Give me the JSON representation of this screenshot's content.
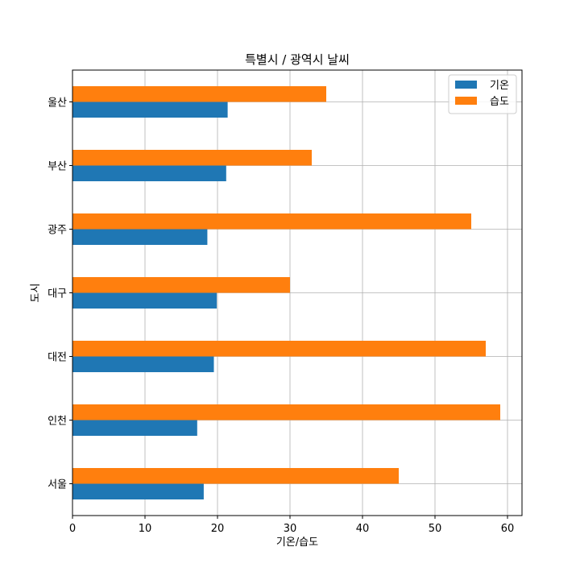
{
  "chart_data": {
    "type": "bar",
    "orientation": "horizontal",
    "title": "특별시 / 광역시 날씨",
    "xlabel": "기온/습도",
    "ylabel": "도시",
    "categories": [
      "서울",
      "인천",
      "대전",
      "대구",
      "광주",
      "부산",
      "울산"
    ],
    "series": [
      {
        "name": "기온",
        "color": "#1f77b4",
        "values": [
          18.1,
          17.2,
          19.5,
          19.9,
          18.6,
          21.2,
          21.4
        ]
      },
      {
        "name": "습도",
        "color": "#ff7f0e",
        "values": [
          45,
          59,
          57,
          30,
          55,
          33,
          35
        ]
      }
    ],
    "xlim": [
      0,
      62
    ],
    "xticks": [
      0,
      10,
      20,
      30,
      40,
      50,
      60
    ],
    "grid": true,
    "legend": "top-right"
  }
}
